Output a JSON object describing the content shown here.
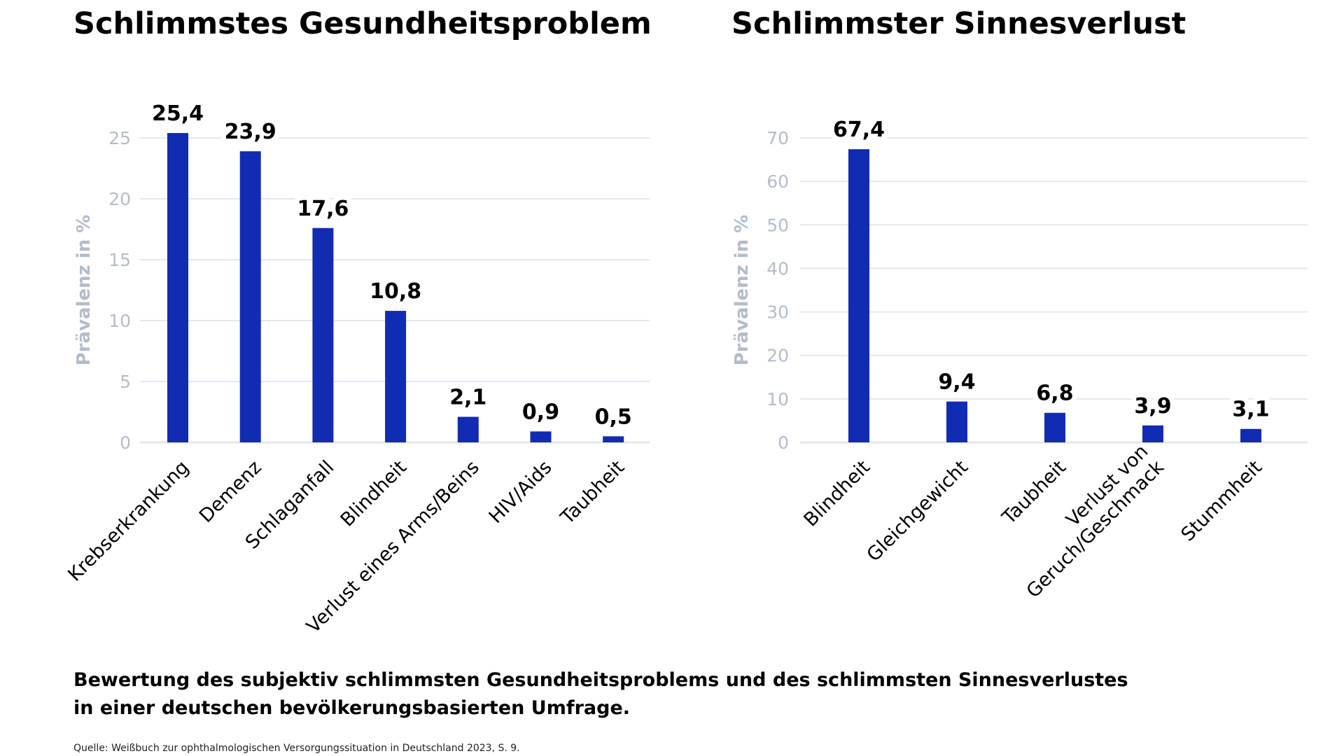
{
  "colors": {
    "bar": "#122bb3",
    "grid": "#e3e7ee",
    "axis_text": "#b4bccb",
    "text": "#000000"
  },
  "chart_data": [
    {
      "type": "bar",
      "title": "Schlimmstes Gesundheitsproblem",
      "ylabel": "Prävalenz in %",
      "xlabel": "",
      "ylim": [
        0,
        25
      ],
      "yticks": [
        "0",
        "5",
        "10",
        "15",
        "20",
        "25"
      ],
      "categories": [
        "Krebserkrankung",
        "Demenz",
        "Schlaganfall",
        "Blindheit",
        "Verlust eines Arms/Beins",
        "HIV/Aids",
        "Taubheit"
      ],
      "values": [
        25.4,
        23.9,
        17.6,
        10.8,
        2.1,
        0.9,
        0.5
      ],
      "value_labels": [
        "25,4",
        "23,9",
        "17,6",
        "10,8",
        "2,1",
        "0,9",
        "0,5"
      ],
      "grid": true
    },
    {
      "type": "bar",
      "title": "Schlimmster Sinnesverlust",
      "ylabel": "Prävalenz in %",
      "xlabel": "",
      "ylim": [
        0,
        70
      ],
      "yticks": [
        "0",
        "10",
        "20",
        "30",
        "40",
        "50",
        "60",
        "70"
      ],
      "categories": [
        "Blindheit",
        "Gleichgewicht",
        "Taubheit",
        "Verlust von\nGeruch/Geschmack",
        "Stummheit"
      ],
      "values": [
        67.4,
        9.4,
        6.8,
        3.9,
        3.1
      ],
      "value_labels": [
        "67,4",
        "9,4",
        "6,8",
        "3,9",
        "3,1"
      ],
      "grid": true
    }
  ],
  "caption": {
    "line1": "Bewertung des subjektiv schlimmsten Gesundheitsproblems und des schlimmsten Sinnesverlustes",
    "line2": "in einer deutschen bevölkerungsbasierten Umfrage."
  },
  "source": "Quelle: Weißbuch zur ophthalmologischen Versorgungssituation in Deutschland 2023, S. 9."
}
